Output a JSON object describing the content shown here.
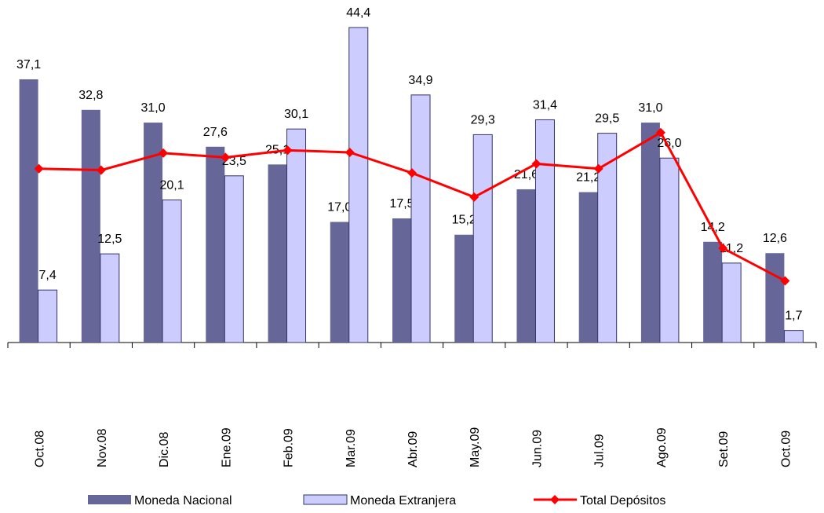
{
  "chart_data": {
    "type": "bar-line",
    "categories": [
      "Oct.08",
      "Nov.08",
      "Dic.08",
      "Ene.09",
      "Feb.09",
      "Mar.09",
      "Abr.09",
      "May.09",
      "Jun.09",
      "Jul.09",
      "Ago.09",
      "Set.09",
      "Oct.09"
    ],
    "series": [
      {
        "name": "Moneda Nacional",
        "type": "bar",
        "color": "#666699",
        "values": [
          37.1,
          32.8,
          31.0,
          27.6,
          25.1,
          17.0,
          17.5,
          15.2,
          21.6,
          21.2,
          31.0,
          14.2,
          12.6
        ],
        "value_labels": [
          "37,1",
          "32,8",
          "31,0",
          "27,6",
          "25,1",
          "17,0",
          "17,5",
          "15,2",
          "21,6",
          "21,2",
          "31,0",
          "14,2",
          "12,6"
        ]
      },
      {
        "name": "Moneda Extranjera",
        "type": "bar",
        "color": "#ccccff",
        "values": [
          7.4,
          12.5,
          20.1,
          23.5,
          30.1,
          44.4,
          34.9,
          29.3,
          31.4,
          29.5,
          26.0,
          11.2,
          1.7
        ],
        "value_labels": [
          "7,4",
          "12,5",
          "20,1",
          "23,5",
          "30,1",
          "44,4",
          "34,9",
          "29,3",
          "31,4",
          "29,5",
          "26,0",
          "11,2",
          "1,7"
        ]
      },
      {
        "name": "Total Depósitos",
        "type": "line",
        "color": "#ff0000",
        "values": [
          24.5,
          24.3,
          26.7,
          26.1,
          27.1,
          26.8,
          23.9,
          20.5,
          25.2,
          24.5,
          29.6,
          13.3,
          8.7
        ]
      }
    ]
  }
}
